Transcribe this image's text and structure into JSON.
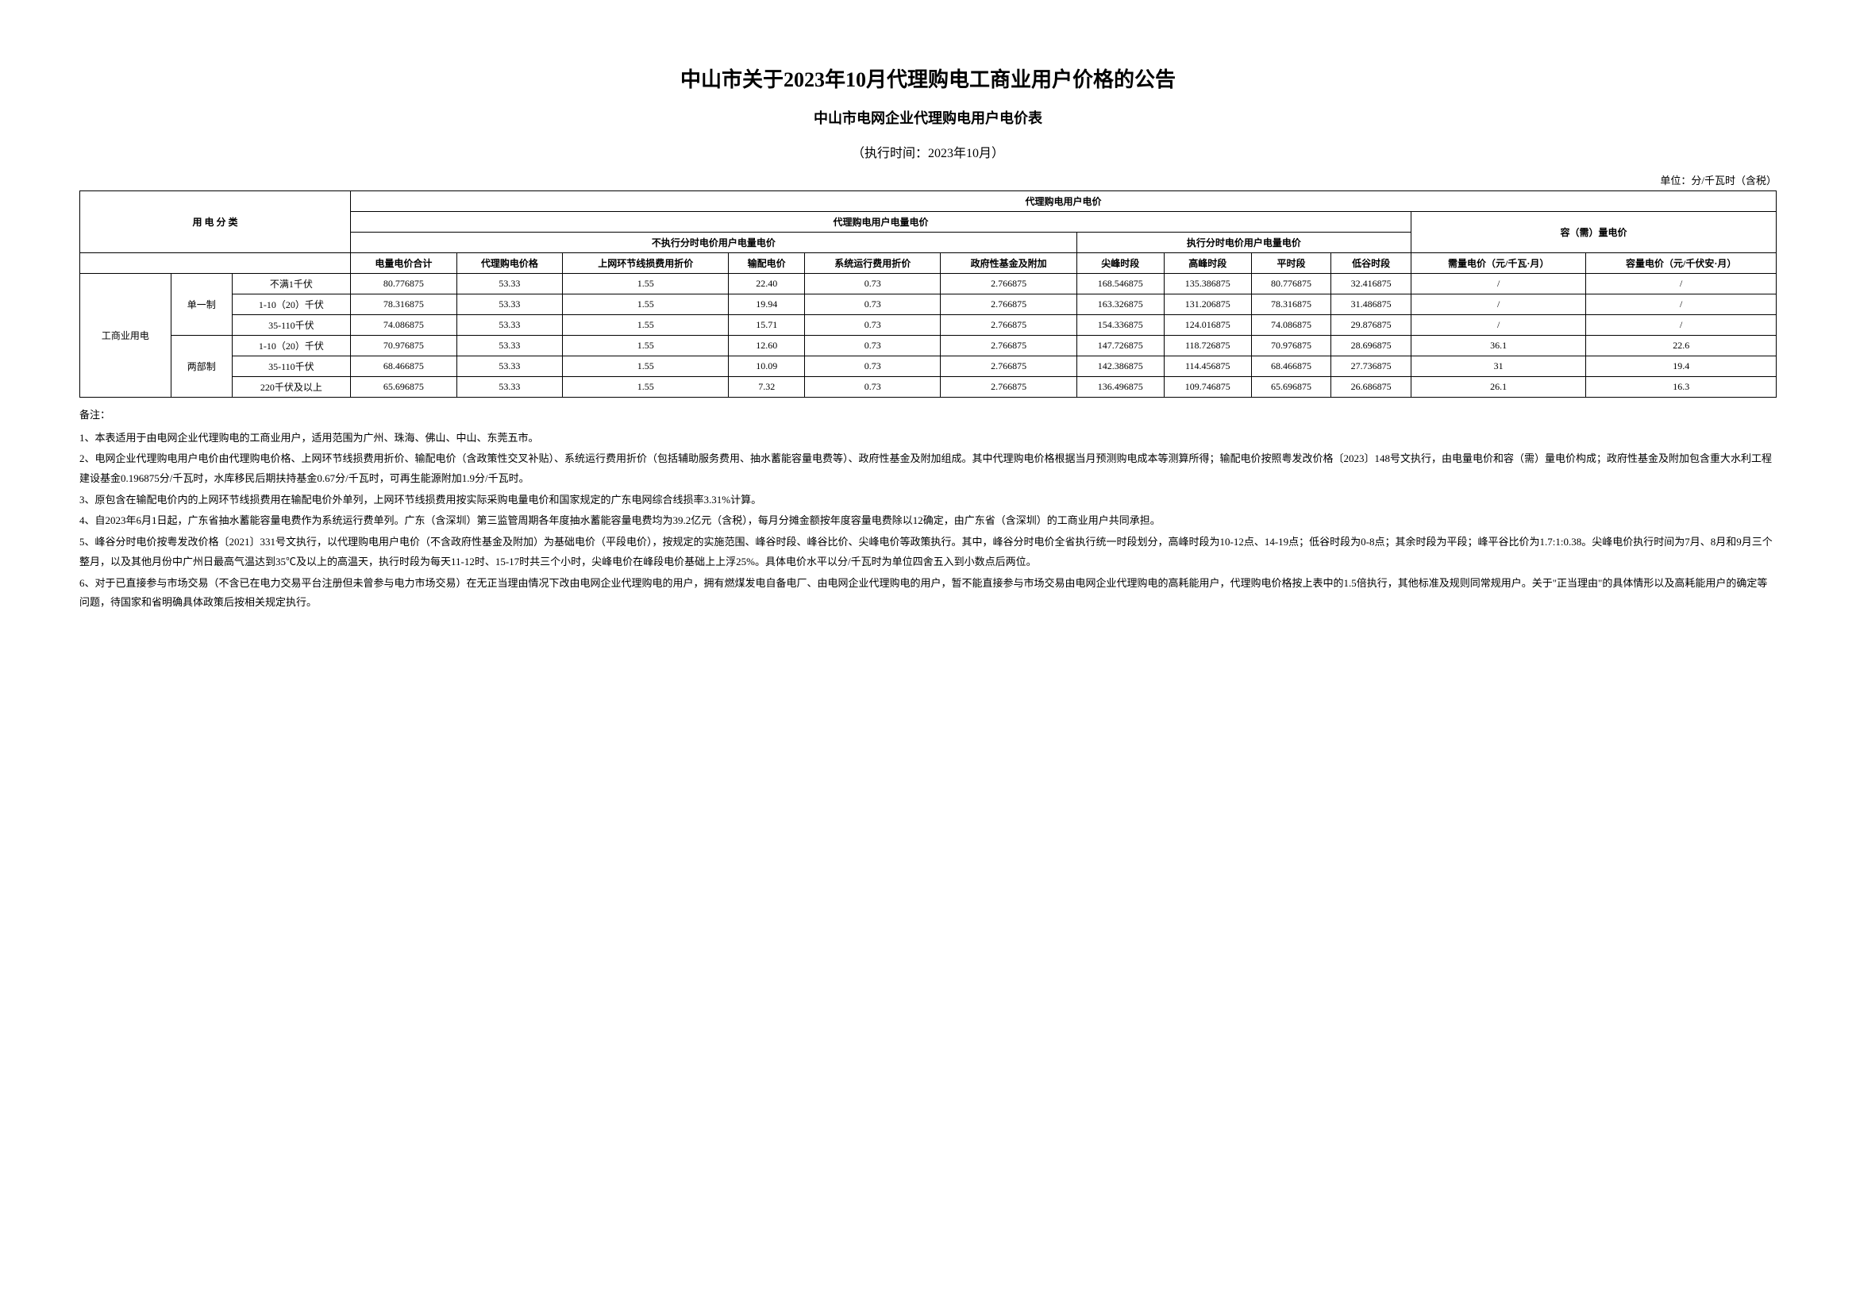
{
  "title": "中山市关于2023年10月代理购电工商业用户价格的公告",
  "subtitle": "中山市电网企业代理购电用户电价表",
  "exec_time": "（执行时间：2023年10月）",
  "unit": "单位：分/千瓦时（含税）",
  "headers": {
    "usage_class": "用 电 分 类",
    "agent_price": "代理购电用户电价",
    "energy_price": "代理购电用户电量电价",
    "capacity_price": "容（需）量电价",
    "no_tou": "不执行分时电价用户电量电价",
    "tou": "执行分时电价用户电量电价",
    "total": "电量电价合计",
    "proxy": "代理购电价格",
    "loss": "上网环节线损费用折价",
    "trans": "输配电价",
    "sys": "系统运行费用折价",
    "gov": "政府性基金及附加",
    "peak": "尖峰时段",
    "high": "高峰时段",
    "flat": "平时段",
    "low": "低谷时段",
    "demand": "需量电价（元/千瓦·月）",
    "capacity": "容量电价（元/千伏安·月）"
  },
  "row_group": "工商业用电",
  "row_sub1": "单一制",
  "row_sub2": "两部制",
  "cat": {
    "r1": "不满1千伏",
    "r2": "1-10（20）千伏",
    "r3": "35-110千伏",
    "r4": "1-10（20）千伏",
    "r5": "35-110千伏",
    "r6": "220千伏及以上"
  },
  "rows": {
    "r1": [
      "80.776875",
      "53.33",
      "1.55",
      "22.40",
      "0.73",
      "2.766875",
      "168.546875",
      "135.386875",
      "80.776875",
      "32.416875",
      "/",
      "/"
    ],
    "r2": [
      "78.316875",
      "53.33",
      "1.55",
      "19.94",
      "0.73",
      "2.766875",
      "163.326875",
      "131.206875",
      "78.316875",
      "31.486875",
      "/",
      "/"
    ],
    "r3": [
      "74.086875",
      "53.33",
      "1.55",
      "15.71",
      "0.73",
      "2.766875",
      "154.336875",
      "124.016875",
      "74.086875",
      "29.876875",
      "/",
      "/"
    ],
    "r4": [
      "70.976875",
      "53.33",
      "1.55",
      "12.60",
      "0.73",
      "2.766875",
      "147.726875",
      "118.726875",
      "70.976875",
      "28.696875",
      "36.1",
      "22.6"
    ],
    "r5": [
      "68.466875",
      "53.33",
      "1.55",
      "10.09",
      "0.73",
      "2.766875",
      "142.386875",
      "114.456875",
      "68.466875",
      "27.736875",
      "31",
      "19.4"
    ],
    "r6": [
      "65.696875",
      "53.33",
      "1.55",
      "7.32",
      "0.73",
      "2.766875",
      "136.496875",
      "109.746875",
      "65.696875",
      "26.686875",
      "26.1",
      "16.3"
    ]
  },
  "notes_label": "备注：",
  "notes": {
    "n1": "1、本表适用于由电网企业代理购电的工商业用户，适用范围为广州、珠海、佛山、中山、东莞五市。",
    "n2": "2、电网企业代理购电用户电价由代理购电价格、上网环节线损费用折价、输配电价（含政策性交叉补贴）、系统运行费用折价（包括辅助服务费用、抽水蓄能容量电费等）、政府性基金及附加组成。其中代理购电价格根据当月预测购电成本等测算所得；输配电价按照粤发改价格〔2023〕148号文执行，由电量电价和容（需）量电价构成；政府性基金及附加包含重大水利工程建设基金0.196875分/千瓦时，水库移民后期扶持基金0.67分/千瓦时，可再生能源附加1.9分/千瓦时。",
    "n3": "3、原包含在输配电价内的上网环节线损费用在输配电价外单列，上网环节线损费用按实际采购电量电价和国家规定的广东电网综合线损率3.31%计算。",
    "n4": "4、自2023年6月1日起，广东省抽水蓄能容量电费作为系统运行费单列。广东（含深圳）第三监管周期各年度抽水蓄能容量电费均为39.2亿元（含税），每月分摊金额按年度容量电费除以12确定，由广东省（含深圳）的工商业用户共同承担。",
    "n5": "5、峰谷分时电价按粤发改价格〔2021〕331号文执行，以代理购电用户电价（不含政府性基金及附加）为基础电价（平段电价），按规定的实施范围、峰谷时段、峰谷比价、尖峰电价等政策执行。其中，峰谷分时电价全省执行统一时段划分，高峰时段为10-12点、14-19点；低谷时段为0-8点；其余时段为平段；峰平谷比价为1.7:1:0.38。尖峰电价执行时间为7月、8月和9月三个整月，以及其他月份中广州日最高气温达到35℃及以上的高温天，执行时段为每天11-12时、15-17时共三个小时，尖峰电价在峰段电价基础上上浮25%。具体电价水平以分/千瓦时为单位四舍五入到小数点后两位。",
    "n6": "6、对于已直接参与市场交易（不含已在电力交易平台注册但未曾参与电力市场交易）在无正当理由情况下改由电网企业代理购电的用户，拥有燃煤发电自备电厂、由电网企业代理购电的用户，暂不能直接参与市场交易由电网企业代理购电的高耗能用户，代理购电价格按上表中的1.5倍执行，其他标准及规则同常规用户。关于\"正当理由\"的具体情形以及高耗能用户的确定等问题，待国家和省明确具体政策后按相关规定执行。"
  }
}
